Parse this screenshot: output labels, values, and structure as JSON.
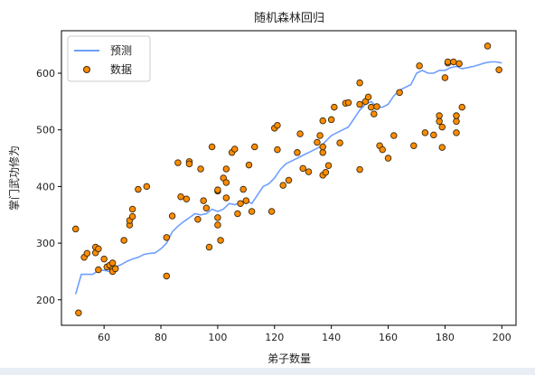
{
  "chart_data": {
    "type": "scatter",
    "title": "随机森林回归",
    "xlabel": "弟子数量",
    "ylabel": "掌门武功修为",
    "xlim": [
      45,
      205
    ],
    "ylim": [
      155,
      675
    ],
    "xticks": [
      60,
      80,
      100,
      120,
      140,
      160,
      180,
      200
    ],
    "yticks": [
      200,
      300,
      400,
      500,
      600
    ],
    "grid": false,
    "legend_position": "top-left",
    "series": [
      {
        "name": "预测",
        "kind": "line",
        "color": "#6f9fff",
        "x": [
          50,
          52,
          54,
          56,
          58,
          60,
          62,
          64,
          66,
          68,
          70,
          72,
          74,
          76,
          78,
          80,
          82,
          84,
          86,
          88,
          90,
          92,
          94,
          96,
          98,
          100,
          102,
          104,
          106,
          108,
          110,
          112,
          114,
          116,
          118,
          120,
          122,
          124,
          126,
          128,
          130,
          132,
          134,
          136,
          138,
          140,
          142,
          144,
          146,
          148,
          150,
          152,
          154,
          156,
          158,
          160,
          162,
          164,
          166,
          168,
          170,
          172,
          174,
          176,
          178,
          180,
          182,
          184,
          186,
          188,
          190,
          192,
          194,
          196,
          198,
          200
        ],
        "y": [
          210,
          245,
          245,
          245,
          252,
          252,
          250,
          258,
          262,
          268,
          272,
          275,
          280,
          282,
          283,
          290,
          300,
          320,
          330,
          338,
          345,
          352,
          350,
          352,
          360,
          356,
          360,
          370,
          368,
          372,
          375,
          370,
          385,
          400,
          405,
          415,
          430,
          440,
          445,
          450,
          455,
          460,
          465,
          470,
          480,
          490,
          495,
          500,
          505,
          520,
          535,
          545,
          550,
          540,
          540,
          545,
          560,
          570,
          575,
          580,
          600,
          605,
          600,
          600,
          605,
          605,
          610,
          612,
          608,
          610,
          612,
          615,
          618,
          620,
          620,
          618
        ]
      },
      {
        "name": "数据",
        "kind": "scatter",
        "color": "#ff8c00",
        "edge_color": "#3a2a10",
        "x": [
          50,
          51,
          53,
          54,
          57,
          57,
          58,
          58,
          60,
          61,
          62,
          63,
          63,
          63,
          64,
          67,
          69,
          69,
          70,
          70,
          72,
          75,
          82,
          82,
          84,
          86,
          87,
          89,
          90,
          90,
          93,
          94,
          95,
          96,
          97,
          98,
          100,
          100,
          100,
          100,
          101,
          102,
          103,
          103,
          103,
          105,
          106,
          107,
          108,
          109,
          110,
          111,
          112,
          113,
          119,
          120,
          121,
          121,
          123,
          125,
          128,
          129,
          130,
          132,
          135,
          136,
          137,
          137,
          137,
          137,
          138,
          139,
          140,
          141,
          143,
          145,
          146,
          150,
          150,
          150,
          152,
          153,
          154,
          155,
          156,
          157,
          158,
          160,
          162,
          164,
          169,
          171,
          173,
          176,
          178,
          178,
          179,
          179,
          180,
          181,
          181,
          183,
          184,
          184,
          184,
          185,
          186,
          195,
          199
        ],
        "y": [
          325,
          177,
          275,
          282,
          283,
          293,
          290,
          253,
          272,
          258,
          261,
          254,
          265,
          250,
          255,
          305,
          332,
          340,
          360,
          347,
          395,
          400,
          310,
          242,
          348,
          442,
          382,
          378,
          444,
          440,
          342,
          431,
          375,
          362,
          293,
          470,
          345,
          332,
          392,
          394,
          305,
          415,
          380,
          407,
          431,
          460,
          466,
          352,
          370,
          395,
          375,
          438,
          356,
          470,
          356,
          503,
          508,
          465,
          402,
          411,
          460,
          493,
          432,
          426,
          478,
          490,
          516,
          420,
          460,
          470,
          425,
          437,
          518,
          540,
          477,
          547,
          548,
          430,
          583,
          545,
          550,
          558,
          540,
          528,
          541,
          472,
          465,
          450,
          490,
          566,
          472,
          613,
          495,
          491,
          525,
          515,
          505,
          469,
          592,
          618,
          620,
          620,
          515,
          495,
          525,
          617,
          540,
          648,
          606
        ]
      }
    ]
  }
}
